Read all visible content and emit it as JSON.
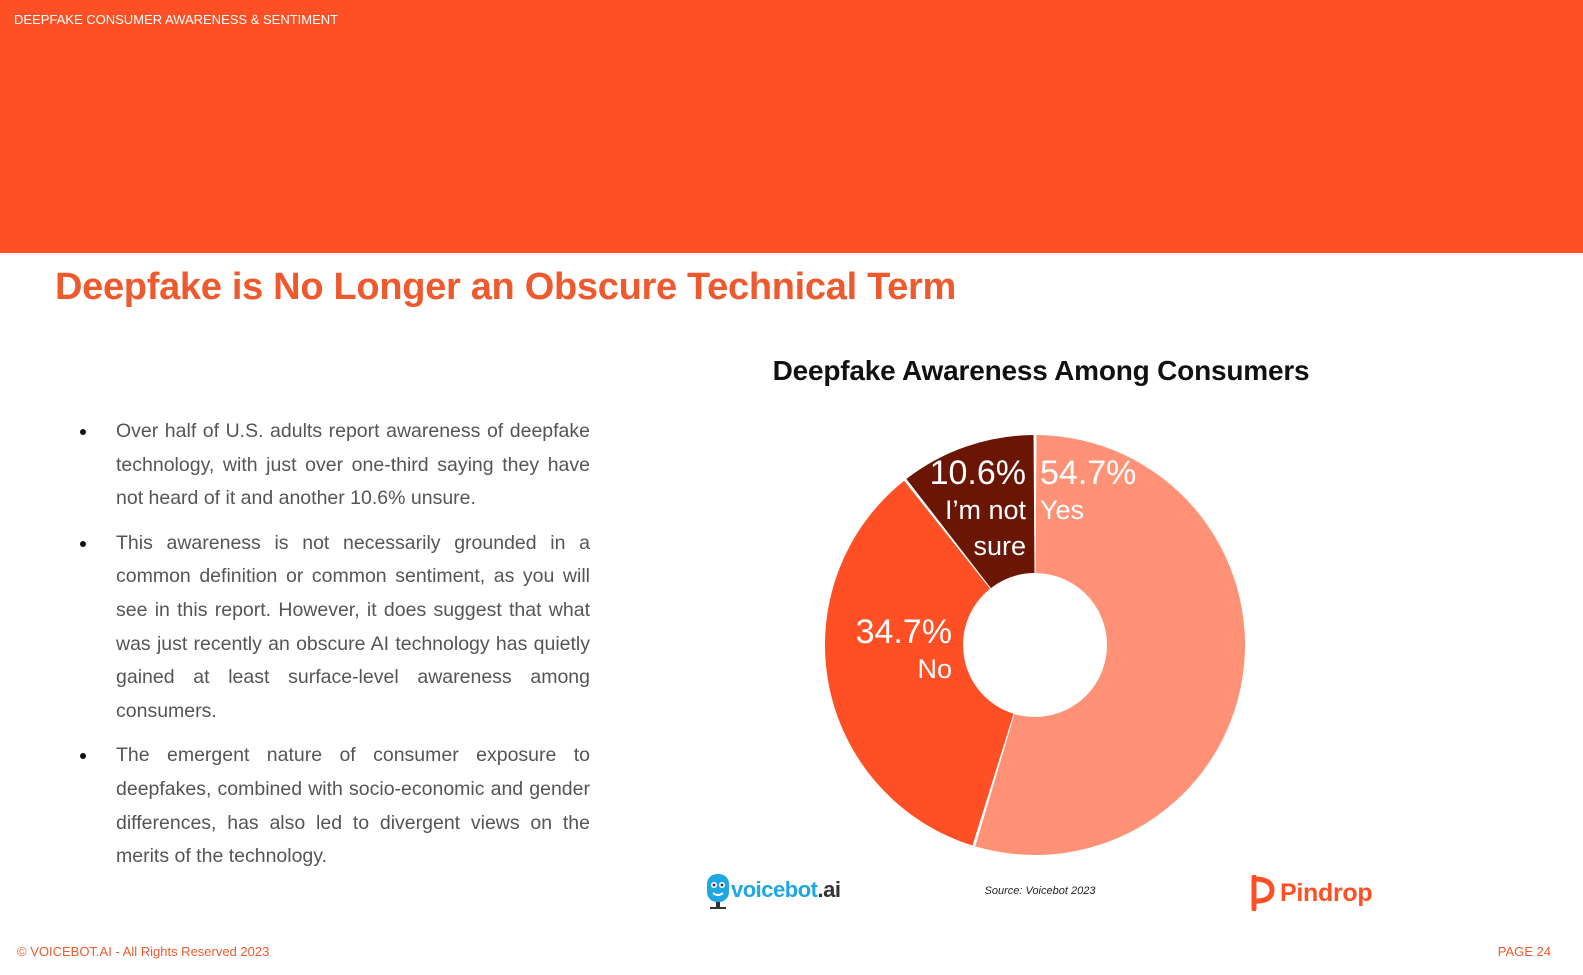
{
  "header": {
    "section_label": "DEEPFAKE CONSUMER AWARENESS & SENTIMENT",
    "banner_color": "#FF4F24"
  },
  "page_title": "Deepfake is No Longer an Obscure Technical Term",
  "bullets": [
    "Over half of U.S. adults report awareness of deepfake technology, with just over one-third saying they have not heard of it and another 10.6% unsure.",
    "This awareness is not necessarily grounded in a common definition or common sentiment, as you will see in this report. However, it does suggest that what was just recently an obscure AI technology has quietly gained at least surface-level awareness among consumers.",
    "The emergent nature of consumer exposure to deepfakes, combined with socio-economic and gender differences, has also led to divergent views on the merits of the technology."
  ],
  "chart_data": {
    "type": "pie",
    "title": "Deepfake Awareness Among Consumers",
    "categories": [
      "Yes",
      "No",
      "I’m not sure"
    ],
    "values": [
      54.7,
      34.7,
      10.6
    ],
    "value_labels": [
      "54.7%",
      "34.7%",
      "10.6%"
    ],
    "label_lines": [
      [
        "Yes"
      ],
      [
        "No"
      ],
      [
        "I’m not",
        "sure"
      ]
    ],
    "colors": [
      "#FF9276",
      "#FF4F24",
      "#6B1504"
    ],
    "donut": true
  },
  "footer": {
    "source": "Source: Voicebot 2023",
    "copyright": "© VOICEBOT.AI - All Rights Reserved 2023",
    "page": "PAGE 24",
    "logo_left_main": "voicebot",
    "logo_left_suffix": ".ai",
    "logo_right": "Pindrop"
  }
}
